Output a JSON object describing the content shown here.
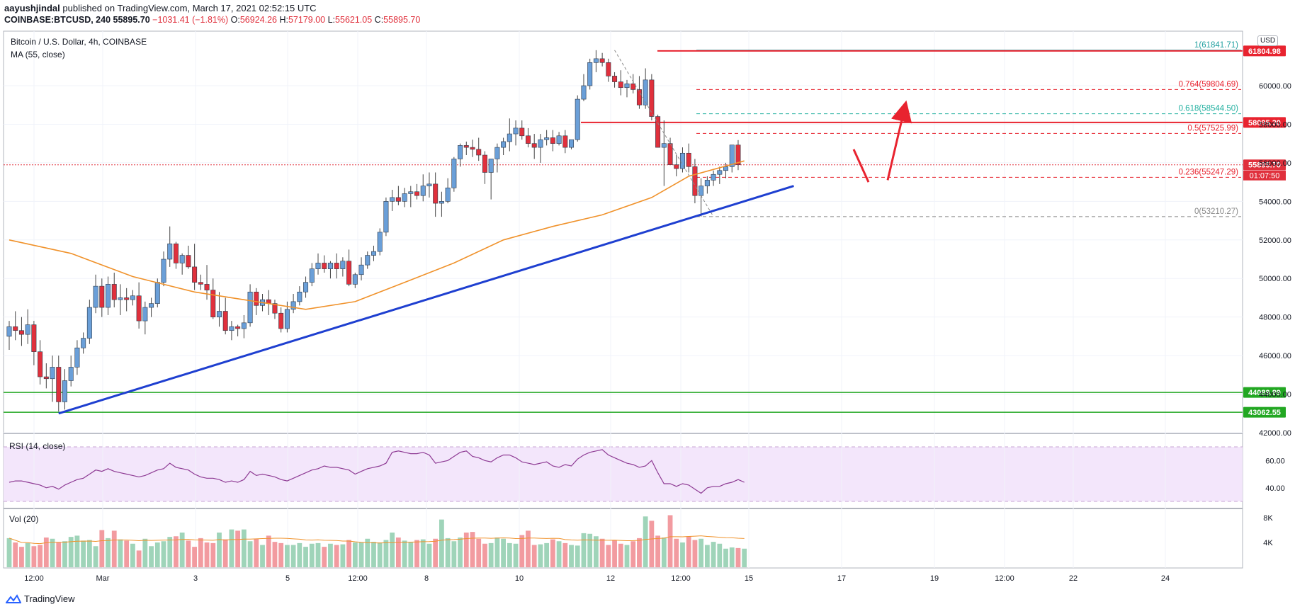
{
  "header": {
    "author": "aayushjindal",
    "published": "published on TradingView.com, March 17, 2021 02:52:15 UTC",
    "symbol": "COINBASE:BTCUSD, 240",
    "last": "55895.70",
    "change": "−1031.41 (−1.81%)",
    "o_label": "O:",
    "o": "56924.26",
    "h_label": "H:",
    "h": "57179.00",
    "l_label": "L:",
    "l": "55621.05",
    "c_label": "C:",
    "c": "55895.70"
  },
  "pane": {
    "title": "Bitcoin / U.S. Dollar, 4h, COINBASE",
    "ma_label": "MA (55, close)",
    "rsi_label": "RSI (14, close)",
    "vol_label": "Vol (20)",
    "currency": "USD"
  },
  "footer": {
    "brand": "TradingView"
  },
  "colors": {
    "up": "#6a9fd8",
    "down": "#e0303c",
    "ma": "#f0922b",
    "trend": "#1e3fd0",
    "support": "#22a722",
    "resistance": "#e8232f",
    "rsi": "#8e3b94",
    "vol_up": "#9fd4b9",
    "vol_down": "#f29ba0"
  },
  "chart_data": {
    "type": "candlestick",
    "price_axis": {
      "ticks": [
        42000,
        44000,
        46000,
        48000,
        50000,
        52000,
        54000,
        56000,
        58000,
        60000
      ],
      "tick_labels": [
        "42000.00",
        "44000.00",
        "46000.00",
        "48000.00",
        "50000.00",
        "52000.00",
        "54000.00",
        "56000.00",
        "58000.00",
        "60000.00"
      ]
    },
    "time_axis": {
      "labels": [
        "12:00",
        "Mar",
        "3",
        "5",
        "12:00",
        "8",
        "10",
        "12",
        "12:00",
        "15",
        "17",
        "19",
        "12:00",
        "22",
        "24"
      ]
    },
    "candles_ohlc": [
      [
        47000,
        47800,
        46300,
        47500
      ],
      [
        47500,
        48300,
        46800,
        47300
      ],
      [
        47300,
        48000,
        46500,
        47100
      ],
      [
        47100,
        48400,
        46600,
        47600
      ],
      [
        47600,
        47800,
        45500,
        46200
      ],
      [
        46200,
        46800,
        44500,
        44900
      ],
      [
        44900,
        45600,
        44300,
        44800
      ],
      [
        44800,
        46000,
        43600,
        45400
      ],
      [
        45400,
        46000,
        43100,
        43600
      ],
      [
        43600,
        45300,
        43200,
        44700
      ],
      [
        44700,
        46000,
        44400,
        45400
      ],
      [
        45400,
        46800,
        45000,
        46400
      ],
      [
        46400,
        47200,
        46100,
        46900
      ],
      [
        46900,
        48900,
        46600,
        48500
      ],
      [
        48500,
        50200,
        48200,
        49600
      ],
      [
        49600,
        50000,
        48000,
        48500
      ],
      [
        48500,
        50100,
        48100,
        49700
      ],
      [
        49700,
        50300,
        48500,
        48900
      ],
      [
        48900,
        49700,
        48100,
        49000
      ],
      [
        49000,
        49500,
        48300,
        48900
      ],
      [
        48900,
        49400,
        48600,
        49100
      ],
      [
        49100,
        49800,
        47400,
        47800
      ],
      [
        47800,
        48800,
        47100,
        48500
      ],
      [
        48500,
        49000,
        48000,
        48700
      ],
      [
        48700,
        50000,
        48500,
        49800
      ],
      [
        49800,
        51400,
        49600,
        51000
      ],
      [
        51000,
        52700,
        50600,
        51800
      ],
      [
        51800,
        51900,
        50500,
        50800
      ],
      [
        50800,
        51300,
        50200,
        51200
      ],
      [
        51200,
        51700,
        50500,
        50600
      ],
      [
        50600,
        51800,
        49400,
        49800
      ],
      [
        49800,
        50200,
        49400,
        49700
      ],
      [
        49700,
        50700,
        48900,
        49400
      ],
      [
        49400,
        50000,
        47900,
        48000
      ],
      [
        48000,
        49300,
        47500,
        48300
      ],
      [
        48300,
        49000,
        47100,
        47300
      ],
      [
        47300,
        47800,
        46800,
        47500
      ],
      [
        47500,
        47600,
        47000,
        47400
      ],
      [
        47400,
        48100,
        46900,
        47700
      ],
      [
        47700,
        49700,
        47500,
        49300
      ],
      [
        49300,
        49500,
        48100,
        48600
      ],
      [
        48600,
        49200,
        48300,
        48900
      ],
      [
        48900,
        49400,
        48100,
        48700
      ],
      [
        48700,
        48900,
        47900,
        48200
      ],
      [
        48200,
        48500,
        47200,
        47400
      ],
      [
        47400,
        48800,
        47200,
        48400
      ],
      [
        48400,
        49200,
        48200,
        48800
      ],
      [
        48800,
        49600,
        48600,
        49300
      ],
      [
        49300,
        50100,
        49000,
        49800
      ],
      [
        49800,
        50800,
        49600,
        50500
      ],
      [
        50500,
        51300,
        50200,
        50800
      ],
      [
        50800,
        51200,
        50300,
        50500
      ],
      [
        50500,
        50900,
        50000,
        50800
      ],
      [
        50800,
        51300,
        50000,
        50500
      ],
      [
        50500,
        51100,
        50100,
        50900
      ],
      [
        50900,
        51500,
        49600,
        49700
      ],
      [
        49700,
        50300,
        49500,
        50200
      ],
      [
        50200,
        51100,
        49900,
        50700
      ],
      [
        50700,
        51400,
        50500,
        51200
      ],
      [
        51200,
        51700,
        50900,
        51400
      ],
      [
        51400,
        52600,
        51200,
        52400
      ],
      [
        52400,
        54200,
        52200,
        54000
      ],
      [
        54000,
        54600,
        53500,
        54200
      ],
      [
        54200,
        54800,
        53800,
        54000
      ],
      [
        54000,
        54700,
        53700,
        54400
      ],
      [
        54400,
        54800,
        53700,
        54500
      ],
      [
        54500,
        54900,
        54100,
        54300
      ],
      [
        54300,
        55400,
        54000,
        54800
      ],
      [
        54800,
        55500,
        54200,
        54900
      ],
      [
        54900,
        55500,
        53200,
        53900
      ],
      [
        53900,
        54500,
        53200,
        54000
      ],
      [
        54000,
        55200,
        53900,
        54700
      ],
      [
        54700,
        56300,
        54500,
        56200
      ],
      [
        56200,
        57000,
        55800,
        56900
      ],
      [
        56900,
        57100,
        56400,
        56800
      ],
      [
        56800,
        57200,
        56300,
        56700
      ],
      [
        56700,
        57300,
        56100,
        56400
      ],
      [
        56400,
        56600,
        54900,
        55500
      ],
      [
        55500,
        56200,
        54100,
        56200
      ],
      [
        56200,
        57000,
        55500,
        56800
      ],
      [
        56800,
        57300,
        56400,
        57100
      ],
      [
        57100,
        58300,
        56600,
        57500
      ],
      [
        57500,
        58200,
        56900,
        57800
      ],
      [
        57800,
        58200,
        57200,
        57400
      ],
      [
        57400,
        57800,
        56800,
        57000
      ],
      [
        57000,
        57500,
        56200,
        56800
      ],
      [
        56800,
        57500,
        56000,
        57200
      ],
      [
        57200,
        57700,
        56900,
        57300
      ],
      [
        57300,
        57700,
        56600,
        57000
      ],
      [
        57000,
        57600,
        56900,
        57400
      ],
      [
        57400,
        57700,
        56500,
        56800
      ],
      [
        56800,
        57200,
        56700,
        57200
      ],
      [
        57200,
        59500,
        57100,
        59300
      ],
      [
        59300,
        60600,
        59200,
        60000
      ],
      [
        60000,
        61400,
        59800,
        61200
      ],
      [
        61200,
        61842,
        60700,
        61400
      ],
      [
        61400,
        61700,
        61000,
        61200
      ],
      [
        61200,
        61400,
        60200,
        60500
      ],
      [
        60500,
        60700,
        59900,
        60200
      ],
      [
        60200,
        60800,
        59500,
        59900
      ],
      [
        59900,
        60300,
        59400,
        60100
      ],
      [
        60100,
        60600,
        59600,
        59800
      ],
      [
        59800,
        60500,
        58800,
        59000
      ],
      [
        59000,
        60900,
        58800,
        60300
      ],
      [
        60300,
        60600,
        58200,
        58400
      ],
      [
        58400,
        58500,
        56800,
        56800
      ],
      [
        56800,
        58200,
        54800,
        57000
      ],
      [
        57000,
        57300,
        55900,
        55900
      ],
      [
        55900,
        56400,
        55300,
        55700
      ],
      [
        55700,
        56800,
        55500,
        56500
      ],
      [
        56500,
        57000,
        55500,
        55800
      ],
      [
        55800,
        56200,
        53900,
        54300
      ],
      [
        54300,
        55200,
        53210,
        54800
      ],
      [
        54800,
        55300,
        54400,
        55100
      ],
      [
        55100,
        55600,
        54800,
        55400
      ],
      [
        55400,
        55800,
        54900,
        55600
      ],
      [
        55600,
        56000,
        55200,
        55800
      ],
      [
        55800,
        56800,
        55500,
        56924
      ],
      [
        56924,
        57179,
        55621,
        55896
      ]
    ],
    "ma55": [
      [
        0,
        52000
      ],
      [
        10,
        51300
      ],
      [
        20,
        50100
      ],
      [
        30,
        49300
      ],
      [
        40,
        48800
      ],
      [
        48,
        48400
      ],
      [
        56,
        48800
      ],
      [
        64,
        49800
      ],
      [
        72,
        50800
      ],
      [
        80,
        52000
      ],
      [
        88,
        52700
      ],
      [
        96,
        53300
      ],
      [
        104,
        54200
      ],
      [
        110,
        55300
      ],
      [
        119,
        56100
      ]
    ],
    "horizontal_levels": [
      {
        "label": "61804.98",
        "value": 61804.98,
        "kind": "resistance"
      },
      {
        "label": "58095.30",
        "value": 58095.3,
        "kind": "resistance"
      },
      {
        "label": "44089.89",
        "value": 44089.89,
        "kind": "support"
      },
      {
        "label": "43062.55",
        "value": 43062.55,
        "kind": "support"
      },
      {
        "label": "55895.70",
        "value": 55895.7,
        "kind": "last"
      }
    ],
    "last_timer": "01:07:50",
    "fibonacci": [
      {
        "ratio": "1",
        "value": 61841.71,
        "label": "1(61841.71)"
      },
      {
        "ratio": "0.764",
        "value": 59804.69,
        "label": "0.764(59804.69)"
      },
      {
        "ratio": "0.618",
        "value": 58544.5,
        "label": "0.618(58544.50)"
      },
      {
        "ratio": "0.5",
        "value": 57525.99,
        "label": "0.5(57525.99)"
      },
      {
        "ratio": "0.236",
        "value": 55247.29,
        "label": "0.236(55247.29)"
      },
      {
        "ratio": "0",
        "value": 53210.27,
        "label": "0(53210.27)"
      }
    ],
    "trendline": [
      [
        8,
        43000
      ],
      [
        127,
        54800
      ]
    ],
    "rsi": {
      "ticks": [
        "40.00",
        "60.00"
      ],
      "values": [
        44,
        45,
        45,
        44,
        43,
        42,
        40,
        41,
        39,
        42,
        44,
        46,
        47,
        50,
        53,
        52,
        54,
        52,
        51,
        50,
        49,
        48,
        49,
        51,
        53,
        54,
        58,
        55,
        54,
        53,
        50,
        48,
        47,
        47,
        46,
        44,
        45,
        44,
        46,
        52,
        49,
        50,
        49,
        48,
        46,
        45,
        47,
        49,
        51,
        53,
        54,
        56,
        55,
        55,
        54,
        53,
        50,
        52,
        54,
        55,
        56,
        58,
        66,
        67,
        66,
        65,
        65,
        66,
        64,
        58,
        59,
        60,
        63,
        66,
        67,
        63,
        62,
        60,
        59,
        62,
        64,
        64,
        62,
        59,
        58,
        57,
        58,
        59,
        56,
        55,
        57,
        56,
        61,
        64,
        66,
        67,
        68,
        64,
        62,
        60,
        58,
        57,
        55,
        56,
        60,
        51,
        43,
        43,
        41,
        43,
        42,
        39,
        36,
        40,
        41,
        41,
        43,
        44,
        46,
        44
      ]
    },
    "volume": {
      "ticks": [
        "4K",
        "8K"
      ],
      "values": [
        4.7,
        4.0,
        3.3,
        3.9,
        3.4,
        3.6,
        4.8,
        4.6,
        4.0,
        4.2,
        4.9,
        5.1,
        4.3,
        4.4,
        3.4,
        6.0,
        4.7,
        5.9,
        4.5,
        4.3,
        3.8,
        2.7,
        4.6,
        3.4,
        4.0,
        4.2,
        4.9,
        5.0,
        5.6,
        4.3,
        3.3,
        4.7,
        4.0,
        3.9,
        5.6,
        4.5,
        6.1,
        5.9,
        6.1,
        4.2,
        4.6,
        3.6,
        5.1,
        4.1,
        3.9,
        3.6,
        3.6,
        3.9,
        3.3,
        3.8,
        3.9,
        3.3,
        3.8,
        3.6,
        3.7,
        4.4,
        4.0,
        4.0,
        4.6,
        4.1,
        4.0,
        4.4,
        5.6,
        4.8,
        4.3,
        4.0,
        4.4,
        4.5,
        3.8,
        4.6,
        7.7,
        4.7,
        4.2,
        4.8,
        5.6,
        5.7,
        4.6,
        3.8,
        3.9,
        4.8,
        4.6,
        3.9,
        3.8,
        5.2,
        5.9,
        3.6,
        3.7,
        3.9,
        4.5,
        4.2,
        3.9,
        3.6,
        3.5,
        5.5,
        5.4,
        5.0,
        4.6,
        3.6,
        4.4,
        3.8,
        3.6,
        4.2,
        4.7,
        8.2,
        7.5,
        5.1,
        4.8,
        8.4,
        4.6,
        4.0,
        5.0,
        4.4,
        4.6,
        3.6,
        4.1,
        3.8,
        3.0,
        3.2,
        3.1,
        3.0
      ]
    }
  }
}
